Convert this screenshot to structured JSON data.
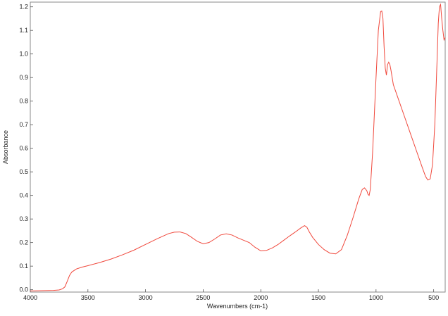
{
  "chart_data": {
    "type": "line",
    "title": "",
    "xlabel": "Wavenumbers (cm-1)",
    "ylabel": "Absorbance",
    "xlim": [
      4000,
      400
    ],
    "ylim": [
      -0.01,
      1.22
    ],
    "x_reversed": true,
    "grid": false,
    "legend": "none",
    "x_ticks": [
      4000,
      3500,
      3000,
      2500,
      2000,
      1500,
      1000,
      500
    ],
    "x_tick_labels": [
      "4000",
      "3500",
      "3000",
      "2500",
      "2000",
      "1500",
      "1000",
      "500"
    ],
    "y_ticks": [
      0.0,
      0.1,
      0.2,
      0.3,
      0.4,
      0.5,
      0.6,
      0.7,
      0.8,
      0.9,
      1.0,
      1.1,
      1.2
    ],
    "y_tick_labels": [
      "0.0",
      "0.1",
      "0.2",
      "0.3",
      "0.4",
      "0.5",
      "0.6",
      "0.7",
      "0.8",
      "0.9",
      "1.0",
      "1.1",
      "1.2"
    ],
    "series": [
      {
        "color": "#f0483c",
        "x": [
          4000,
          3900,
          3800,
          3750,
          3720,
          3700,
          3680,
          3660,
          3640,
          3600,
          3550,
          3500,
          3400,
          3300,
          3200,
          3100,
          3000,
          2900,
          2800,
          2750,
          2700,
          2650,
          2600,
          2550,
          2500,
          2450,
          2400,
          2350,
          2300,
          2250,
          2200,
          2150,
          2100,
          2050,
          2000,
          1950,
          1900,
          1850,
          1800,
          1750,
          1700,
          1650,
          1620,
          1600,
          1580,
          1550,
          1500,
          1450,
          1400,
          1350,
          1300,
          1250,
          1200,
          1150,
          1120,
          1100,
          1080,
          1070,
          1060,
          1050,
          1030,
          1000,
          980,
          960,
          950,
          940,
          930,
          920,
          910,
          900,
          890,
          880,
          870,
          850,
          800,
          750,
          700,
          650,
          600,
          570,
          550,
          530,
          510,
          490,
          470,
          460,
          450,
          440,
          430,
          420,
          410,
          400
        ],
        "y": [
          -0.005,
          -0.004,
          -0.003,
          -0.001,
          0.004,
          0.012,
          0.035,
          0.06,
          0.075,
          0.088,
          0.096,
          0.102,
          0.115,
          0.13,
          0.148,
          0.168,
          0.192,
          0.216,
          0.238,
          0.244,
          0.245,
          0.238,
          0.222,
          0.205,
          0.195,
          0.2,
          0.215,
          0.232,
          0.237,
          0.232,
          0.22,
          0.21,
          0.2,
          0.18,
          0.165,
          0.167,
          0.177,
          0.192,
          0.21,
          0.228,
          0.245,
          0.263,
          0.272,
          0.265,
          0.246,
          0.222,
          0.192,
          0.17,
          0.155,
          0.152,
          0.17,
          0.23,
          0.305,
          0.385,
          0.425,
          0.432,
          0.42,
          0.405,
          0.4,
          0.425,
          0.58,
          0.9,
          1.1,
          1.18,
          1.182,
          1.15,
          1.03,
          0.94,
          0.91,
          0.955,
          0.965,
          0.955,
          0.93,
          0.87,
          0.8,
          0.73,
          0.66,
          0.59,
          0.52,
          0.48,
          0.465,
          0.47,
          0.53,
          0.7,
          0.98,
          1.13,
          1.2,
          1.21,
          1.15,
          1.1,
          1.06,
          1.07
        ]
      }
    ]
  }
}
